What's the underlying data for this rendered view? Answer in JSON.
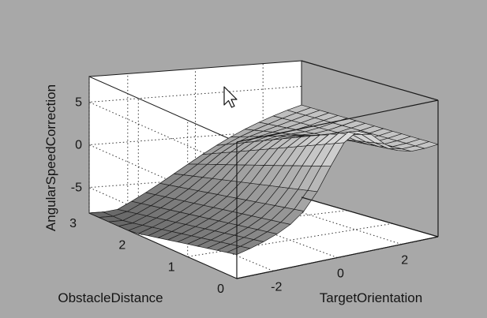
{
  "chart_data": {
    "type": "surface",
    "title": "",
    "xlabel": "TargetOrientation",
    "ylabel": "ObstacleDistance",
    "zlabel": "AngularSpeedCorrection",
    "xlim": [
      -3.14,
      3.14
    ],
    "ylim": [
      0,
      3
    ],
    "zlim": [
      -8,
      8
    ],
    "x_ticks": [
      -2,
      0,
      2
    ],
    "y_ticks": [
      0,
      1,
      2,
      3
    ],
    "z_ticks": [
      -5,
      0,
      5
    ],
    "x_tick_labels": [
      "-2",
      "0",
      "2"
    ],
    "y_tick_labels": [
      "0",
      "1",
      "2",
      "3"
    ],
    "z_tick_labels": [
      "-5",
      "0",
      "5"
    ],
    "grid": true,
    "box": true,
    "colormap": "gray",
    "resolution": 15,
    "surface_summary": {
      "description_of_shape": "sigmoid-like rise in TargetOrientation, amplified peak near small ObstacleDistance",
      "corner_values": {
        "x=-3.14,y=3": -8,
        "x=-3.14,y=0": -4,
        "x=3.14,y=0": 6,
        "x=3.14,y=3": 2
      },
      "peak": {
        "x": 0.5,
        "y": 0.2,
        "z": 7.8
      }
    }
  },
  "colors": {
    "background": "#a8a8a8",
    "axes_face": "#ffffff",
    "mesh_edge": "#1e1e1e"
  }
}
